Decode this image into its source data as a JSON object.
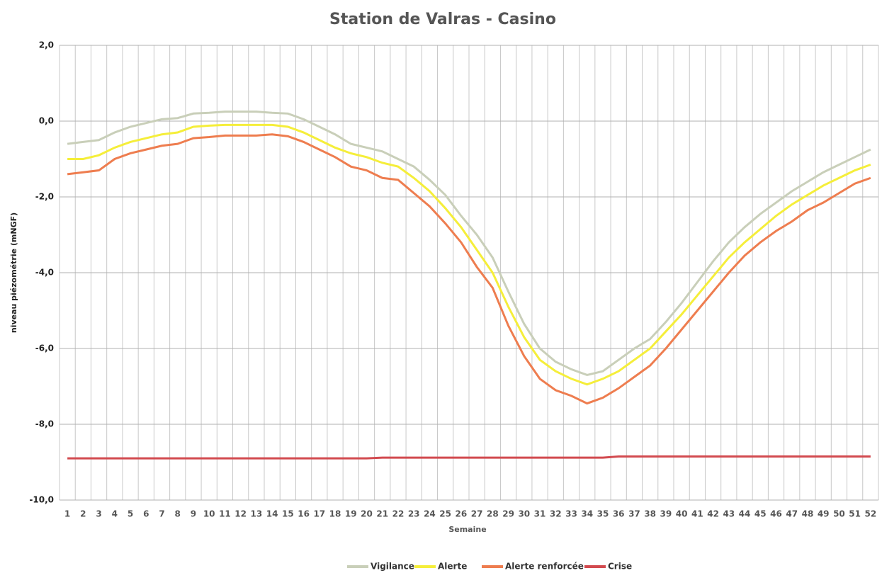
{
  "chart_data": {
    "type": "line",
    "title": "Station de Valras - Casino",
    "x_label": "Semaine",
    "y_label": "niveau piézométrie (mNGF)",
    "categories": [
      "1",
      "2",
      "3",
      "4",
      "5",
      "6",
      "7",
      "8",
      "9",
      "10",
      "11",
      "12",
      "13",
      "14",
      "15",
      "16",
      "17",
      "18",
      "19",
      "20",
      "21",
      "22",
      "23",
      "24",
      "25",
      "26",
      "27",
      "28",
      "29",
      "30",
      "31",
      "32",
      "33",
      "34",
      "35",
      "36",
      "37",
      "38",
      "39",
      "40",
      "41",
      "42",
      "43",
      "44",
      "45",
      "46",
      "47",
      "48",
      "49",
      "50",
      "51",
      "52"
    ],
    "ylim": [
      -10,
      2
    ],
    "yticks": [
      {
        "value": -10,
        "label": "-10,0"
      },
      {
        "value": -8,
        "label": "-8,0"
      },
      {
        "value": -6,
        "label": "-6,0"
      },
      {
        "value": -4,
        "label": "-4,0"
      },
      {
        "value": -2,
        "label": "-2,0"
      },
      {
        "value": 0,
        "label": "0,0"
      },
      {
        "value": 2,
        "label": "2,0"
      }
    ],
    "grid": true,
    "legend": "bottom",
    "series": [
      {
        "name": "Vigilance",
        "color": "#c9cfb9",
        "values": [
          -0.6,
          -0.55,
          -0.5,
          -0.3,
          -0.15,
          -0.05,
          0.05,
          0.08,
          0.2,
          0.22,
          0.25,
          0.25,
          0.25,
          0.22,
          0.2,
          0.05,
          -0.15,
          -0.35,
          -0.6,
          -0.7,
          -0.8,
          -1.0,
          -1.2,
          -1.55,
          -1.95,
          -2.5,
          -3.0,
          -3.6,
          -4.5,
          -5.35,
          -6.0,
          -6.35,
          -6.55,
          -6.7,
          -6.6,
          -6.3,
          -6.0,
          -5.75,
          -5.3,
          -4.8,
          -4.25,
          -3.7,
          -3.2,
          -2.8,
          -2.45,
          -2.15,
          -1.85,
          -1.6,
          -1.35,
          -1.15,
          -0.95,
          -0.75
        ]
      },
      {
        "name": "Alerte",
        "color": "#f5ee3a",
        "values": [
          -1.0,
          -1.0,
          -0.9,
          -0.7,
          -0.55,
          -0.45,
          -0.35,
          -0.3,
          -0.15,
          -0.12,
          -0.1,
          -0.1,
          -0.1,
          -0.1,
          -0.15,
          -0.3,
          -0.5,
          -0.7,
          -0.85,
          -0.95,
          -1.1,
          -1.2,
          -1.5,
          -1.85,
          -2.3,
          -2.8,
          -3.4,
          -4.0,
          -4.9,
          -5.7,
          -6.3,
          -6.6,
          -6.8,
          -6.95,
          -6.8,
          -6.6,
          -6.3,
          -6.0,
          -5.55,
          -5.1,
          -4.6,
          -4.1,
          -3.6,
          -3.2,
          -2.85,
          -2.5,
          -2.2,
          -1.95,
          -1.7,
          -1.5,
          -1.3,
          -1.15
        ]
      },
      {
        "name": "Alerte renforcée",
        "color": "#ee7d4f",
        "values": [
          -1.4,
          -1.35,
          -1.3,
          -1.0,
          -0.85,
          -0.75,
          -0.65,
          -0.6,
          -0.45,
          -0.42,
          -0.38,
          -0.38,
          -0.38,
          -0.35,
          -0.4,
          -0.55,
          -0.75,
          -0.95,
          -1.2,
          -1.3,
          -1.5,
          -1.55,
          -1.9,
          -2.25,
          -2.7,
          -3.2,
          -3.85,
          -4.4,
          -5.4,
          -6.2,
          -6.8,
          -7.1,
          -7.25,
          -7.45,
          -7.3,
          -7.05,
          -6.75,
          -6.45,
          -6.0,
          -5.5,
          -5.0,
          -4.5,
          -4.0,
          -3.55,
          -3.2,
          -2.9,
          -2.65,
          -2.35,
          -2.15,
          -1.9,
          -1.65,
          -1.5
        ]
      },
      {
        "name": "Crise",
        "color": "#d24a4f",
        "values": [
          -8.9,
          -8.9,
          -8.9,
          -8.9,
          -8.9,
          -8.9,
          -8.9,
          -8.9,
          -8.9,
          -8.9,
          -8.9,
          -8.9,
          -8.9,
          -8.9,
          -8.9,
          -8.9,
          -8.9,
          -8.9,
          -8.9,
          -8.9,
          -8.88,
          -8.88,
          -8.88,
          -8.88,
          -8.88,
          -8.88,
          -8.88,
          -8.88,
          -8.88,
          -8.88,
          -8.88,
          -8.88,
          -8.88,
          -8.88,
          -8.88,
          -8.85,
          -8.85,
          -8.85,
          -8.85,
          -8.85,
          -8.85,
          -8.85,
          -8.85,
          -8.85,
          -8.85,
          -8.85,
          -8.85,
          -8.85,
          -8.85,
          -8.85,
          -8.85,
          -8.85
        ]
      }
    ]
  }
}
